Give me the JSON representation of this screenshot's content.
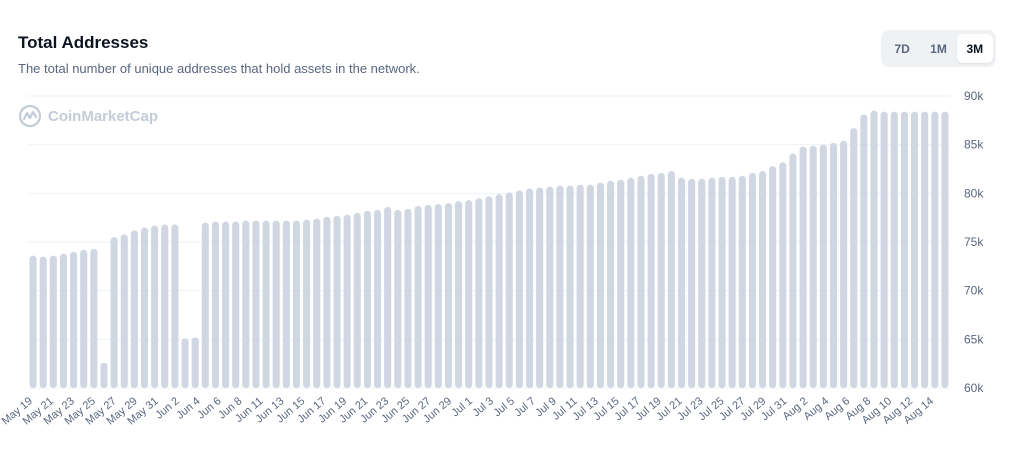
{
  "header": {
    "title": "Total Addresses",
    "subtitle": "The total number of unique addresses that hold assets in the network."
  },
  "range_buttons": [
    {
      "label": "7D",
      "active": false
    },
    {
      "label": "1M",
      "active": false
    },
    {
      "label": "3M",
      "active": true
    }
  ],
  "watermark": {
    "text": "CoinMarketCap",
    "icon": "coinmarketcap-logo-icon"
  },
  "colors": {
    "bar": "#d0d7e3",
    "grid": "#eff2f5",
    "text": "#58667e"
  },
  "chart_data": {
    "type": "bar",
    "ylim": [
      60000,
      90000
    ],
    "y_ticks": [
      {
        "value": 90000,
        "label": "90k"
      },
      {
        "value": 85000,
        "label": "85k"
      },
      {
        "value": 80000,
        "label": "80k"
      },
      {
        "value": 75000,
        "label": "75k"
      },
      {
        "value": 70000,
        "label": "70k"
      },
      {
        "value": 65000,
        "label": "65k"
      },
      {
        "value": 60000,
        "label": "60k"
      }
    ],
    "x_tick_labels": [
      "May 19",
      "May 21",
      "May 23",
      "May 25",
      "May 27",
      "May 29",
      "May 31",
      "Jun 2",
      "Jun 4",
      "Jun 6",
      "Jun 8",
      "Jun 11",
      "Jun 13",
      "Jun 15",
      "Jun 17",
      "Jun 19",
      "Jun 21",
      "Jun 23",
      "Jun 25",
      "Jun 27",
      "Jun 29",
      "Jul 1",
      "Jul 3",
      "Jul 5",
      "Jul 7",
      "Jul 9",
      "Jul 11",
      "Jul 13",
      "Jul 15",
      "Jul 17",
      "Jul 19",
      "Jul 21",
      "Jul 23",
      "Jul 25",
      "Jul 27",
      "Jul 29",
      "Jul 31",
      "Aug 2",
      "Aug 4",
      "Aug 6",
      "Aug 8",
      "Aug 10",
      "Aug 12",
      "Aug 14"
    ],
    "values": [
      73600,
      73500,
      73600,
      73800,
      74000,
      74200,
      74300,
      62600,
      75500,
      75800,
      76200,
      76500,
      76700,
      76800,
      76800,
      65100,
      65200,
      77000,
      77100,
      77100,
      77100,
      77200,
      77200,
      77200,
      77200,
      77200,
      77200,
      77300,
      77400,
      77600,
      77700,
      77800,
      78000,
      78200,
      78300,
      78600,
      78300,
      78400,
      78700,
      78800,
      78900,
      79000,
      79200,
      79300,
      79500,
      79700,
      79900,
      80100,
      80300,
      80500,
      80600,
      80700,
      80800,
      80800,
      80900,
      80900,
      81100,
      81300,
      81400,
      81600,
      81800,
      82000,
      82100,
      82300,
      81600,
      81500,
      81500,
      81600,
      81700,
      81700,
      81800,
      82100,
      82300,
      82800,
      83200,
      84100,
      84800,
      84900,
      85000,
      85200,
      85400,
      86700,
      88100,
      88500,
      88400,
      88400,
      88400,
      88400,
      88400,
      88400,
      88400
    ]
  }
}
